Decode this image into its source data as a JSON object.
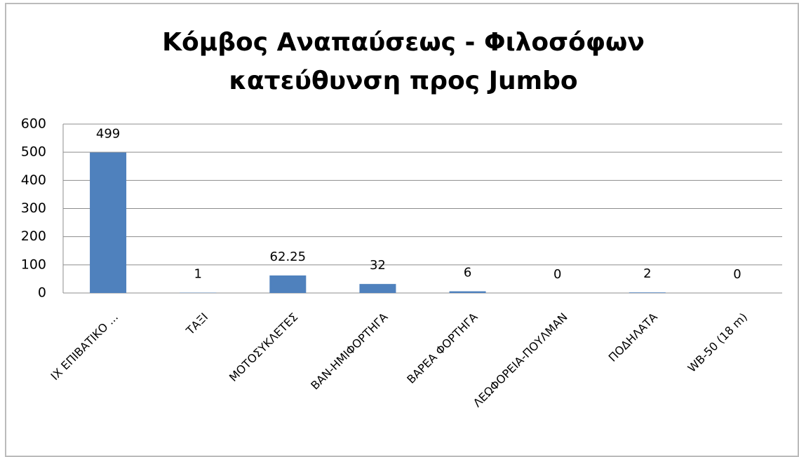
{
  "chart_data": {
    "type": "bar",
    "title": [
      "Κόμβος Αναπαύσεως - Φιλοσόφων",
      "κατεύθυνση προς Jumbo"
    ],
    "categories": [
      "ΙΧ ΕΠΙΒΑΤΙΚΟ ...",
      "ΤΑΞΙ",
      "ΜΟΤΟΣΥΚΛΕΤΕΣ",
      "ΒΑΝ-ΗΜΙΦΟΡΤΗΓΑ",
      "ΒΑΡΕΑ ΦΟΡΤΗΓΑ",
      "ΛΕΩΦΟΡΕΙΑ-ΠΟΥΛΜΑΝ",
      "ΠΟΔΗΛΑΤΑ",
      "WB-50 (18 m)"
    ],
    "values": [
      499,
      1,
      62.25,
      32,
      6,
      0,
      2,
      0
    ],
    "color": "#4f81bd",
    "ylim": [
      0,
      600
    ],
    "yticks": [
      0,
      100,
      200,
      300,
      400,
      500,
      600
    ],
    "grid": true
  }
}
